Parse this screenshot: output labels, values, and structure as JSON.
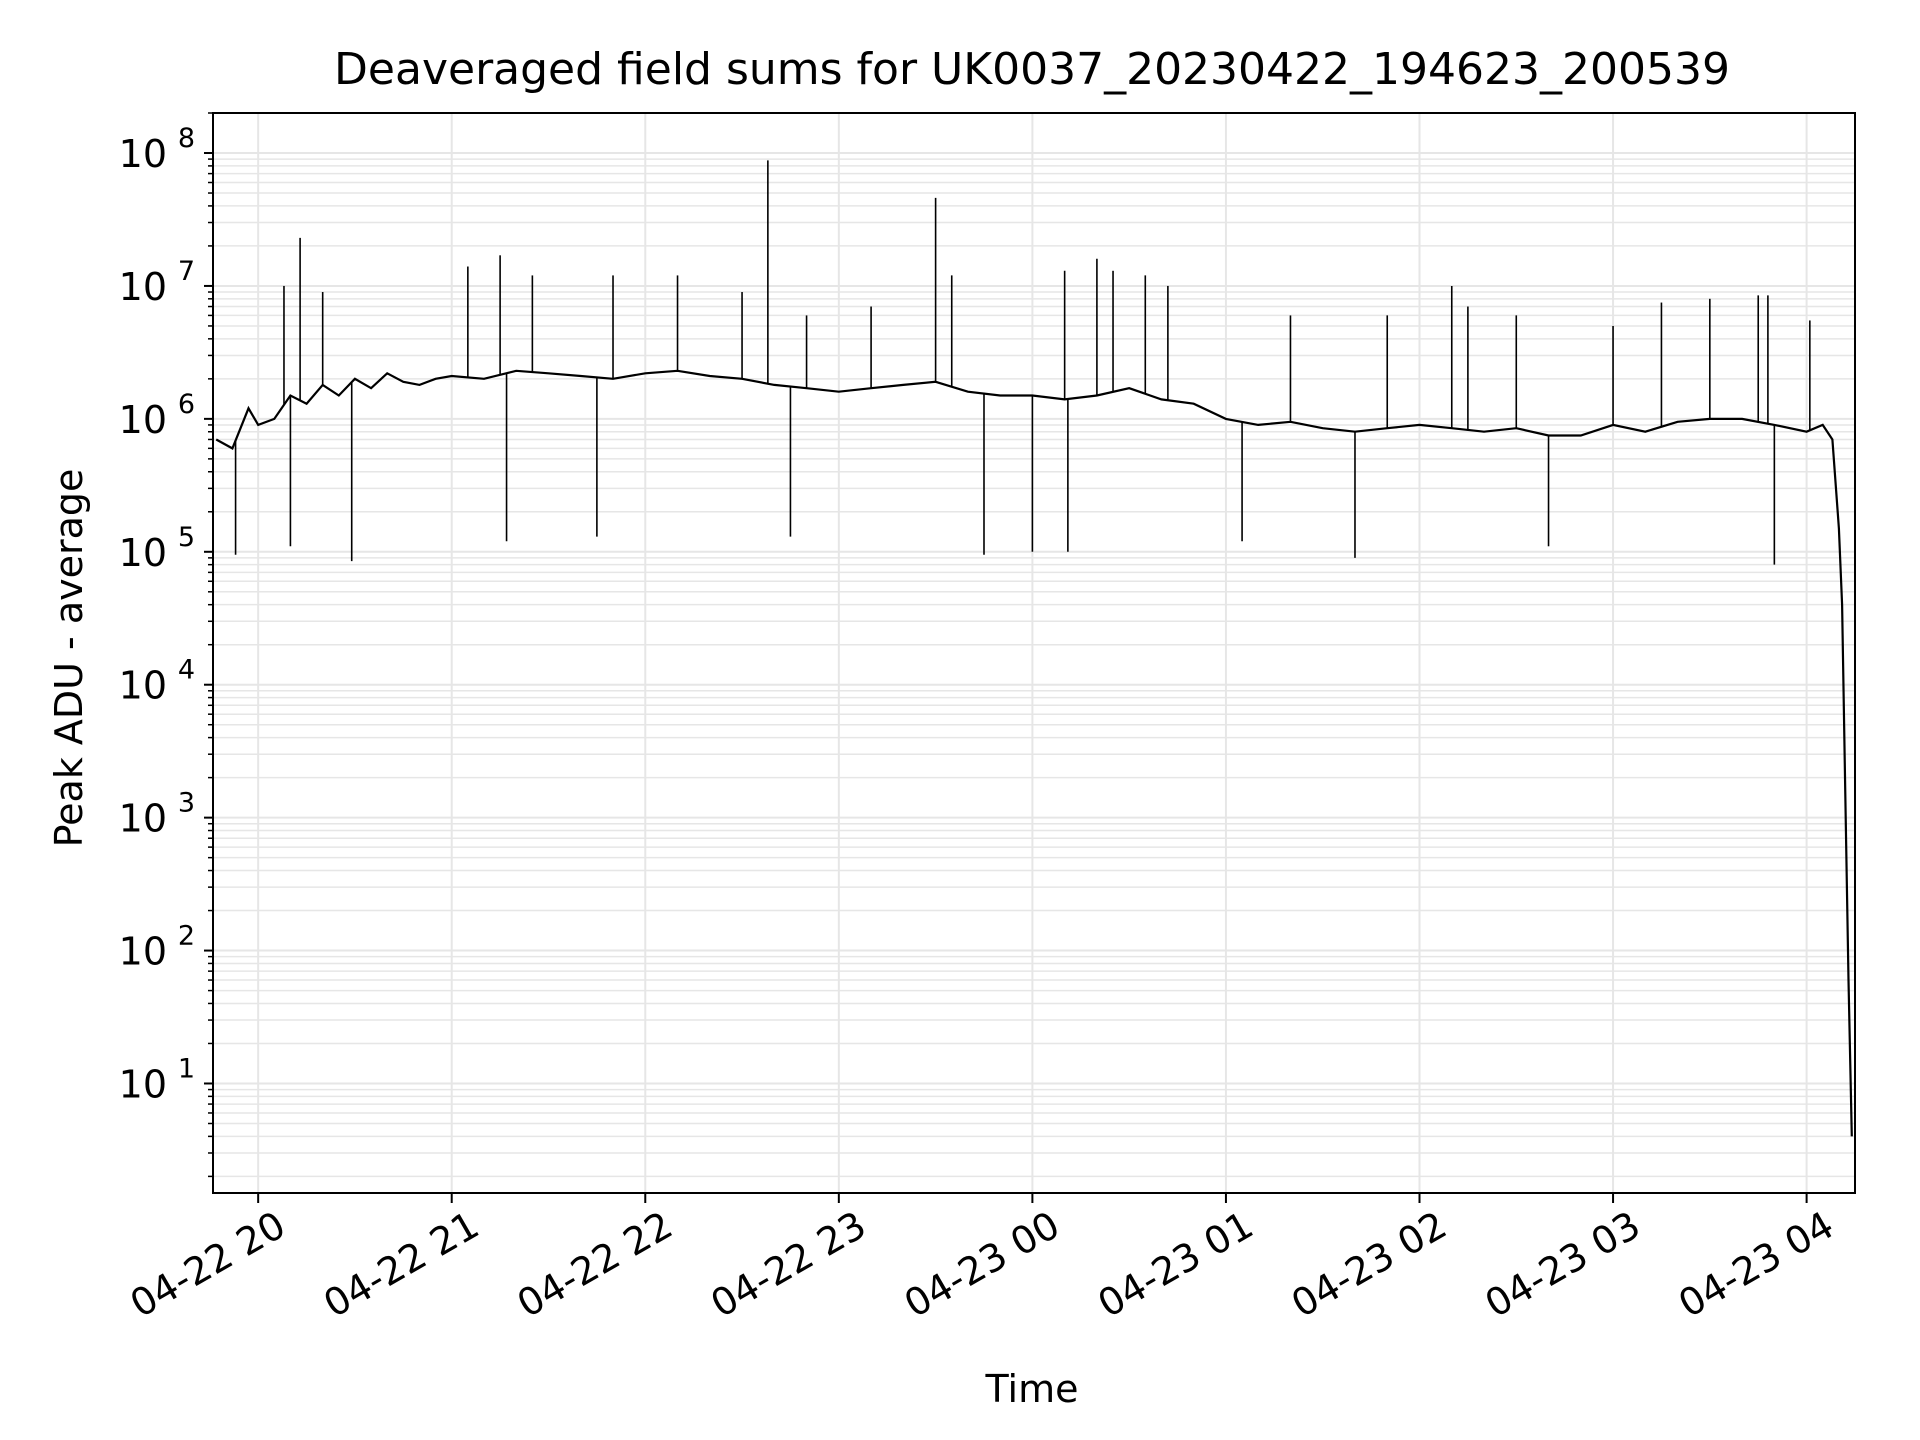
{
  "chart_data": {
    "type": "line",
    "title": "Deaveraged field sums for UK0037_20230422_194623_200539",
    "xlabel": "Time",
    "ylabel": "Peak ADU - average",
    "x_range": [
      "2023-04-22 19:46",
      "2023-04-23 04:15"
    ],
    "yscale": "log",
    "ylim": [
      1.5,
      200000000
    ],
    "grid": true,
    "line_color": "#000000",
    "grid_color": "#e6e6e6",
    "x_ticks": [
      {
        "time": "2023-04-22 20:00",
        "label": "04-22 20"
      },
      {
        "time": "2023-04-22 21:00",
        "label": "04-22 21"
      },
      {
        "time": "2023-04-22 22:00",
        "label": "04-22 22"
      },
      {
        "time": "2023-04-22 23:00",
        "label": "04-22 23"
      },
      {
        "time": "2023-04-23 00:00",
        "label": "04-23 00"
      },
      {
        "time": "2023-04-23 01:00",
        "label": "04-23 01"
      },
      {
        "time": "2023-04-23 02:00",
        "label": "04-23 02"
      },
      {
        "time": "2023-04-23 03:00",
        "label": "04-23 03"
      },
      {
        "time": "2023-04-23 04:00",
        "label": "04-23 04"
      }
    ],
    "y_ticks": [
      {
        "value": 10,
        "base": "10",
        "exp": "1"
      },
      {
        "value": 100,
        "base": "10",
        "exp": "2"
      },
      {
        "value": 1000,
        "base": "10",
        "exp": "3"
      },
      {
        "value": 10000,
        "base": "10",
        "exp": "4"
      },
      {
        "value": 100000,
        "base": "10",
        "exp": "5"
      },
      {
        "value": 1000000,
        "base": "10",
        "exp": "6"
      },
      {
        "value": 10000000,
        "base": "10",
        "exp": "7"
      },
      {
        "value": 100000000,
        "base": "10",
        "exp": "8"
      }
    ],
    "series": [
      {
        "values": [
          [
            "2023-04-22 19:47",
            700000
          ],
          [
            "2023-04-22 19:52",
            600000
          ],
          [
            "2023-04-22 19:57",
            1200000
          ],
          [
            "2023-04-22 20:00",
            900000
          ],
          [
            "2023-04-22 20:05",
            1000000
          ],
          [
            "2023-04-22 20:10",
            1500000
          ],
          [
            "2023-04-22 20:15",
            1300000
          ],
          [
            "2023-04-22 20:20",
            1800000
          ],
          [
            "2023-04-22 20:25",
            1500000
          ],
          [
            "2023-04-22 20:30",
            2000000
          ],
          [
            "2023-04-22 20:35",
            1700000
          ],
          [
            "2023-04-22 20:40",
            2200000
          ],
          [
            "2023-04-22 20:45",
            1900000
          ],
          [
            "2023-04-22 20:50",
            1800000
          ],
          [
            "2023-04-22 20:55",
            2000000
          ],
          [
            "2023-04-22 21:00",
            2100000
          ],
          [
            "2023-04-22 21:10",
            2000000
          ],
          [
            "2023-04-22 21:20",
            2300000
          ],
          [
            "2023-04-22 21:30",
            2200000
          ],
          [
            "2023-04-22 21:40",
            2100000
          ],
          [
            "2023-04-22 21:50",
            2000000
          ],
          [
            "2023-04-22 22:00",
            2200000
          ],
          [
            "2023-04-22 22:10",
            2300000
          ],
          [
            "2023-04-22 22:20",
            2100000
          ],
          [
            "2023-04-22 22:30",
            2000000
          ],
          [
            "2023-04-22 22:40",
            1800000
          ],
          [
            "2023-04-22 22:50",
            1700000
          ],
          [
            "2023-04-22 23:00",
            1600000
          ],
          [
            "2023-04-22 23:10",
            1700000
          ],
          [
            "2023-04-22 23:20",
            1800000
          ],
          [
            "2023-04-22 23:30",
            1900000
          ],
          [
            "2023-04-22 23:40",
            1600000
          ],
          [
            "2023-04-22 23:50",
            1500000
          ],
          [
            "2023-04-23 00:00",
            1500000
          ],
          [
            "2023-04-23 00:10",
            1400000
          ],
          [
            "2023-04-23 00:20",
            1500000
          ],
          [
            "2023-04-23 00:30",
            1700000
          ],
          [
            "2023-04-23 00:40",
            1400000
          ],
          [
            "2023-04-23 00:50",
            1300000
          ],
          [
            "2023-04-23 01:00",
            1000000
          ],
          [
            "2023-04-23 01:10",
            900000
          ],
          [
            "2023-04-23 01:20",
            950000
          ],
          [
            "2023-04-23 01:30",
            850000
          ],
          [
            "2023-04-23 01:40",
            800000
          ],
          [
            "2023-04-23 01:50",
            850000
          ],
          [
            "2023-04-23 02:00",
            900000
          ],
          [
            "2023-04-23 02:10",
            850000
          ],
          [
            "2023-04-23 02:20",
            800000
          ],
          [
            "2023-04-23 02:30",
            850000
          ],
          [
            "2023-04-23 02:40",
            750000
          ],
          [
            "2023-04-23 02:50",
            750000
          ],
          [
            "2023-04-23 03:00",
            900000
          ],
          [
            "2023-04-23 03:10",
            800000
          ],
          [
            "2023-04-23 03:20",
            950000
          ],
          [
            "2023-04-23 03:30",
            1000000
          ],
          [
            "2023-04-23 03:40",
            1000000
          ],
          [
            "2023-04-23 03:50",
            900000
          ],
          [
            "2023-04-23 04:00",
            800000
          ],
          [
            "2023-04-23 04:05",
            900000
          ],
          [
            "2023-04-23 04:08",
            700000
          ],
          [
            "2023-04-23 04:10",
            150000
          ],
          [
            "2023-04-23 04:11",
            40000
          ],
          [
            "2023-04-23 04:12",
            1500
          ],
          [
            "2023-04-23 04:13",
            60
          ],
          [
            "2023-04-23 04:14",
            4
          ]
        ],
        "spikes": [
          [
            "2023-04-22 20:13",
            23000000
          ],
          [
            "2023-04-22 20:08",
            10000000
          ],
          [
            "2023-04-22 20:20",
            9000000
          ],
          [
            "2023-04-22 20:10",
            110000
          ],
          [
            "2023-04-22 20:29",
            85000
          ],
          [
            "2023-04-22 19:53",
            95000
          ],
          [
            "2023-04-22 21:05",
            14000000
          ],
          [
            "2023-04-22 21:15",
            17000000
          ],
          [
            "2023-04-22 21:25",
            12000000
          ],
          [
            "2023-04-22 21:17",
            120000
          ],
          [
            "2023-04-22 21:50",
            12000000
          ],
          [
            "2023-04-22 21:45",
            130000
          ],
          [
            "2023-04-22 22:10",
            12000000
          ],
          [
            "2023-04-22 22:30",
            9000000
          ],
          [
            "2023-04-22 22:38",
            88000000
          ],
          [
            "2023-04-22 22:45",
            130000
          ],
          [
            "2023-04-22 22:50",
            6000000
          ],
          [
            "2023-04-22 23:10",
            7000000
          ],
          [
            "2023-04-22 23:30",
            46000000
          ],
          [
            "2023-04-22 23:35",
            12000000
          ],
          [
            "2023-04-22 23:45",
            95000
          ],
          [
            "2023-04-23 00:00",
            100000
          ],
          [
            "2023-04-23 00:10",
            13000000
          ],
          [
            "2023-04-23 00:11",
            100000
          ],
          [
            "2023-04-23 00:20",
            16000000
          ],
          [
            "2023-04-23 00:25",
            13000000
          ],
          [
            "2023-04-23 00:35",
            12000000
          ],
          [
            "2023-04-23 00:42",
            10000000
          ],
          [
            "2023-04-23 01:05",
            120000
          ],
          [
            "2023-04-23 01:20",
            6000000
          ],
          [
            "2023-04-23 01:40",
            90000
          ],
          [
            "2023-04-23 01:50",
            6000000
          ],
          [
            "2023-04-23 02:10",
            10000000
          ],
          [
            "2023-04-23 02:15",
            7000000
          ],
          [
            "2023-04-23 02:30",
            6000000
          ],
          [
            "2023-04-23 02:40",
            110000
          ],
          [
            "2023-04-23 03:00",
            5000000
          ],
          [
            "2023-04-23 03:15",
            7500000
          ],
          [
            "2023-04-23 03:30",
            8000000
          ],
          [
            "2023-04-23 03:45",
            8500000
          ],
          [
            "2023-04-23 03:48",
            8500000
          ],
          [
            "2023-04-23 03:50",
            80000
          ],
          [
            "2023-04-23 04:01",
            5500000
          ]
        ]
      }
    ]
  }
}
